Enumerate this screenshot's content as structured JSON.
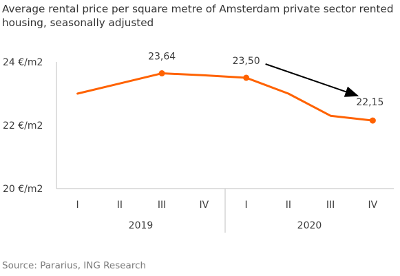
{
  "title": "Average rental price per square metre of Amsterdam private sector rented housing, seasonally adjusted",
  "source": "Source: Pararius, ING Research",
  "colors": {
    "line": "#ff6200",
    "axis": "#bfbfbf",
    "text": "#3c3c3c",
    "arrow": "#000000"
  },
  "chart_data": {
    "type": "line",
    "title": "Average rental price per square metre of Amsterdam private sector rented housing, seasonally adjusted",
    "xlabel": "",
    "ylabel": "",
    "ylim": [
      20,
      24
    ],
    "yticks": [
      20,
      22,
      24
    ],
    "ytick_labels": [
      "20 €/m2",
      "22 €/m2",
      "24 €/m2"
    ],
    "categories": [
      "I",
      "II",
      "III",
      "IV",
      "I",
      "II",
      "III",
      "IV"
    ],
    "groups": [
      {
        "label": "2019",
        "span": 4
      },
      {
        "label": "2020",
        "span": 4
      }
    ],
    "series": [
      {
        "values": [
          23.0,
          23.32,
          23.64,
          23.58,
          23.5,
          23.0,
          22.3,
          22.15
        ],
        "markers": [
          2,
          4,
          7
        ]
      }
    ],
    "annotations": [
      {
        "text": "23,64",
        "index": 2
      },
      {
        "text": "23,50",
        "index": 4
      },
      {
        "text": "22,15",
        "index": 7
      }
    ],
    "arrow": {
      "from_index": 4,
      "to_index": 7
    },
    "grid": false,
    "legend": "none"
  }
}
